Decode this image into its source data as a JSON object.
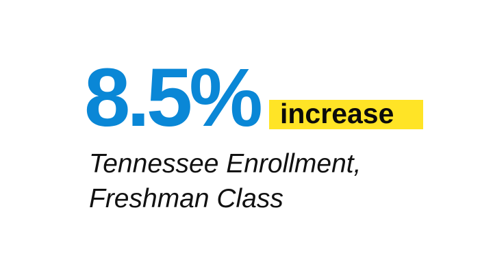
{
  "stat": {
    "value": "8.5%",
    "highlight_word": "increase",
    "subtitle_line1": "Tennessee Enrollment,",
    "subtitle_line2": "Freshman Class"
  },
  "colors": {
    "number": "#0a87d6",
    "highlight": "#ffe426",
    "text": "#111111",
    "background": "#ffffff"
  }
}
